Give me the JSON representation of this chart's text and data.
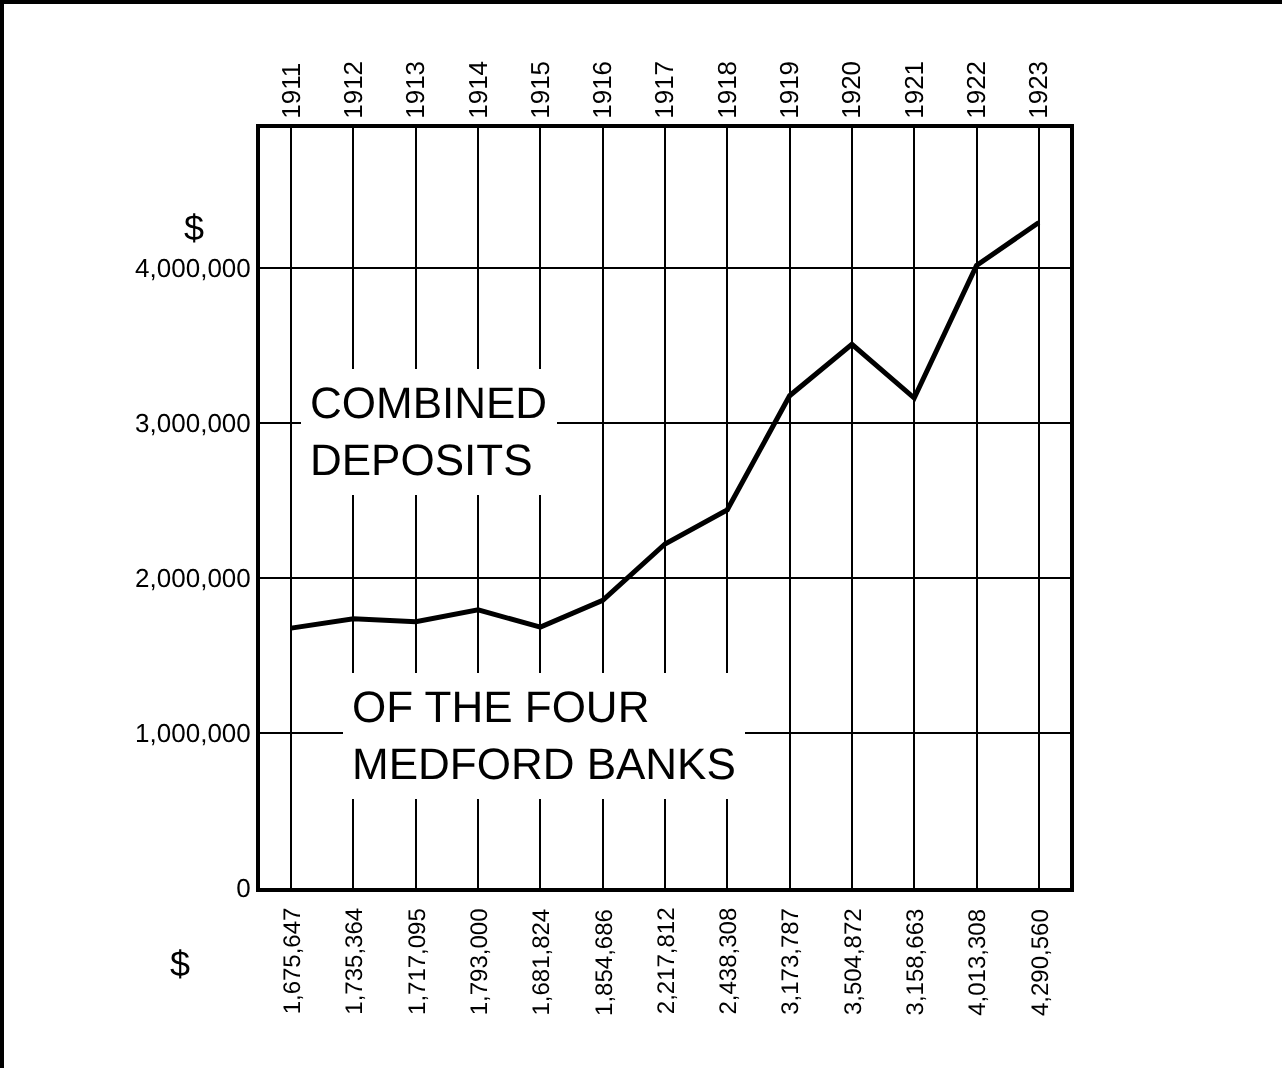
{
  "chart_data": {
    "type": "line",
    "categories": [
      "1911",
      "1912",
      "1913",
      "1914",
      "1915",
      "1916",
      "1917",
      "1918",
      "1919",
      "1920",
      "1921",
      "1922",
      "1923"
    ],
    "values": [
      1675647,
      1735364,
      1717095,
      1793000,
      1681824,
      1854686,
      2217812,
      2438308,
      3173787,
      3504872,
      3158663,
      4013308,
      4290560
    ],
    "value_labels": [
      "1,675,647",
      "1,735,364",
      "1,717,095",
      "1,793,000",
      "1,681,824",
      "1,854,686",
      "2,217,812",
      "2,438,308",
      "3,173,787",
      "3,504,872",
      "3,158,663",
      "4,013,308",
      "4,290,560"
    ],
    "color": "#000000",
    "ylabel": "$",
    "ylim": [
      0,
      4900000
    ],
    "yticks": [
      {
        "value": 0,
        "label": "0"
      },
      {
        "value": 1000000,
        "label": "1,000,000"
      },
      {
        "value": 2000000,
        "label": "2,000,000"
      },
      {
        "value": 3000000,
        "label": "3,000,000"
      },
      {
        "value": 4000000,
        "label": "4,000,000"
      }
    ],
    "grid": true,
    "annotations": [
      "COMBINED\nDEPOSITS",
      "OF THE FOUR\nMEDFORD BANKS",
      "$"
    ]
  }
}
